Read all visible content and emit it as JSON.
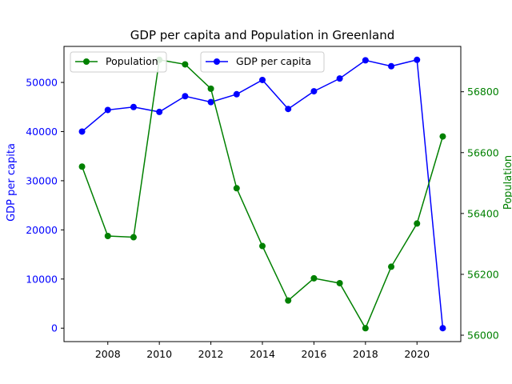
{
  "chart_data": {
    "type": "line",
    "title": "GDP per capita and Population in Greenland",
    "x": [
      2007,
      2008,
      2009,
      2010,
      2011,
      2012,
      2013,
      2014,
      2015,
      2016,
      2017,
      2018,
      2019,
      2020,
      2021
    ],
    "x_ticks": [
      2008,
      2010,
      2012,
      2014,
      2016,
      2018,
      2020
    ],
    "xlim": [
      2006.3,
      2021.7
    ],
    "series": [
      {
        "name": "GDP per capita",
        "axis": "left",
        "color": "#0000ff",
        "values": [
          40000,
          44400,
          45000,
          44000,
          47200,
          46000,
          47600,
          50500,
          44600,
          48200,
          50800,
          54500,
          53300,
          54600,
          0
        ]
      },
      {
        "name": "Population",
        "axis": "right",
        "color": "#008000",
        "values": [
          56554,
          56326,
          56322,
          56905,
          56890,
          56810,
          56483,
          56293,
          56114,
          56187,
          56171,
          56023,
          56225,
          56367,
          56653
        ]
      }
    ],
    "y_left": {
      "label": "GDP per capita",
      "color": "#0000ff",
      "ylim": [
        -2730,
        57330
      ],
      "ticks": [
        0,
        10000,
        20000,
        30000,
        40000,
        50000
      ]
    },
    "y_right": {
      "label": "Population",
      "color": "#008000",
      "ylim": [
        55979,
        56949
      ],
      "ticks": [
        56000,
        56200,
        56400,
        56600,
        56800
      ]
    },
    "legends": [
      {
        "entries": [
          "Population"
        ],
        "placement": "upper-left"
      },
      {
        "entries": [
          "GDP per capita"
        ],
        "placement": "upper-center"
      }
    ],
    "grid": false
  }
}
